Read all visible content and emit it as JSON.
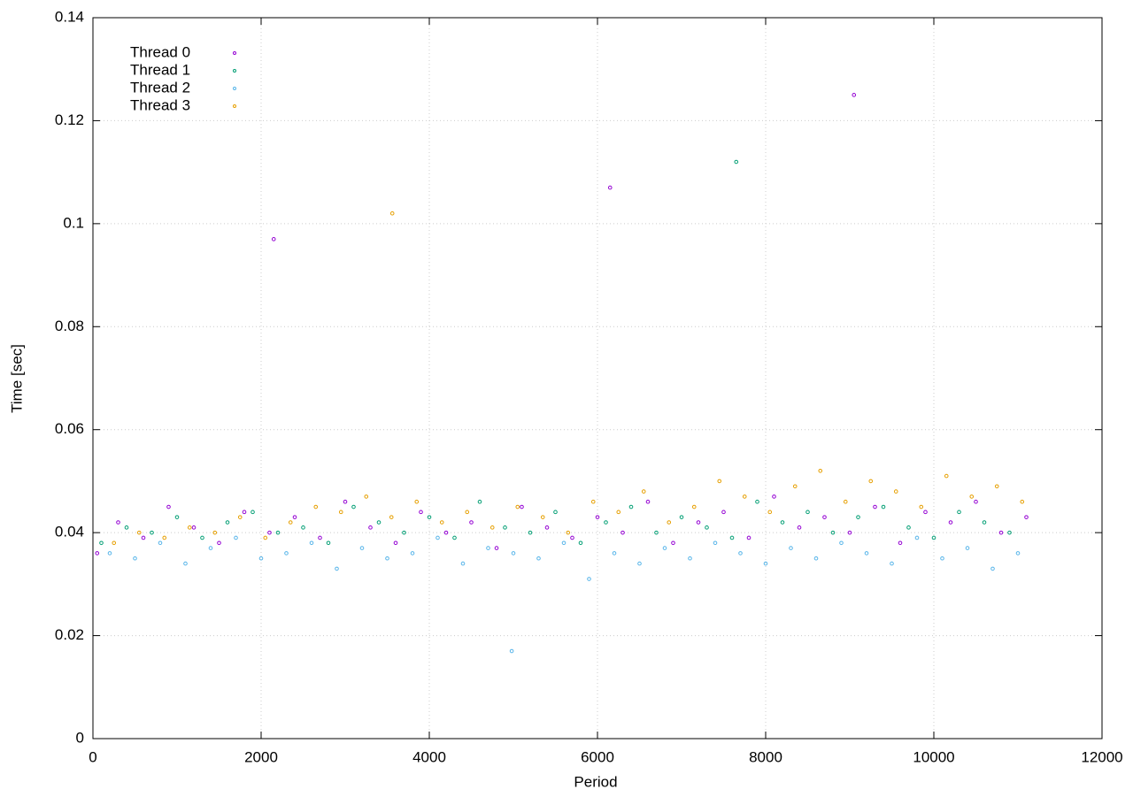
{
  "chart_data": {
    "type": "scatter",
    "xlabel": "Period",
    "ylabel": "Time [sec]",
    "xlim": [
      0,
      12000
    ],
    "ylim": [
      0,
      0.14
    ],
    "xticks": [
      0,
      2000,
      4000,
      6000,
      8000,
      10000,
      12000
    ],
    "yticks": [
      0,
      0.02,
      0.04,
      0.06,
      0.08,
      0.1,
      0.12,
      0.14
    ],
    "grid": true,
    "legend": "top-left",
    "series": [
      {
        "name": "Thread 0",
        "color": "#9400d3",
        "x": [
          50,
          300,
          600,
          900,
          1200,
          1500,
          1800,
          2100,
          2150,
          2400,
          2700,
          3000,
          3300,
          3600,
          3900,
          4200,
          4500,
          4800,
          5100,
          5400,
          5700,
          6000,
          6150,
          6300,
          6600,
          6900,
          7200,
          7500,
          7800,
          8100,
          8400,
          8700,
          9000,
          9050,
          9300,
          9600,
          9900,
          10200,
          10500,
          10800,
          11100
        ],
        "values": [
          0.036,
          0.042,
          0.039,
          0.045,
          0.041,
          0.038,
          0.044,
          0.04,
          0.097,
          0.043,
          0.039,
          0.046,
          0.041,
          0.038,
          0.044,
          0.04,
          0.042,
          0.037,
          0.045,
          0.041,
          0.039,
          0.043,
          0.107,
          0.04,
          0.046,
          0.038,
          0.042,
          0.044,
          0.039,
          0.047,
          0.041,
          0.043,
          0.04,
          0.125,
          0.045,
          0.038,
          0.044,
          0.042,
          0.046,
          0.04,
          0.043
        ]
      },
      {
        "name": "Thread 1",
        "color": "#009e73",
        "x": [
          100,
          400,
          700,
          1000,
          1300,
          1600,
          1900,
          2200,
          2500,
          2800,
          3100,
          3400,
          3700,
          4000,
          4300,
          4600,
          4900,
          5200,
          5500,
          5800,
          6100,
          6400,
          6700,
          7000,
          7300,
          7600,
          7900,
          8200,
          8500,
          8800,
          9100,
          9400,
          9700,
          10000,
          10300,
          10600,
          10900,
          7650
        ],
        "values": [
          0.038,
          0.041,
          0.04,
          0.043,
          0.039,
          0.042,
          0.044,
          0.04,
          0.041,
          0.038,
          0.045,
          0.042,
          0.04,
          0.043,
          0.039,
          0.046,
          0.041,
          0.04,
          0.044,
          0.038,
          0.042,
          0.045,
          0.04,
          0.043,
          0.041,
          0.039,
          0.046,
          0.042,
          0.044,
          0.04,
          0.043,
          0.045,
          0.041,
          0.039,
          0.044,
          0.042,
          0.04,
          0.112
        ]
      },
      {
        "name": "Thread 2",
        "color": "#56b4e9",
        "x": [
          200,
          500,
          800,
          1100,
          1400,
          1700,
          2000,
          2300,
          2600,
          2900,
          3200,
          3500,
          3800,
          4100,
          4400,
          4700,
          5000,
          5300,
          5600,
          5900,
          6200,
          6500,
          6800,
          7100,
          7400,
          7700,
          8000,
          8300,
          8600,
          8900,
          9200,
          9500,
          9800,
          10100,
          10400,
          10700,
          11000,
          4980
        ],
        "values": [
          0.036,
          0.035,
          0.038,
          0.034,
          0.037,
          0.039,
          0.035,
          0.036,
          0.038,
          0.033,
          0.037,
          0.035,
          0.036,
          0.039,
          0.034,
          0.037,
          0.036,
          0.035,
          0.038,
          0.031,
          0.036,
          0.034,
          0.037,
          0.035,
          0.038,
          0.036,
          0.034,
          0.037,
          0.035,
          0.038,
          0.036,
          0.034,
          0.039,
          0.035,
          0.037,
          0.033,
          0.036,
          0.017
        ]
      },
      {
        "name": "Thread 3",
        "color": "#e69f00",
        "x": [
          250,
          550,
          850,
          1150,
          1450,
          1750,
          2050,
          2350,
          2650,
          2950,
          3250,
          3550,
          3850,
          4150,
          4450,
          4750,
          5050,
          5350,
          5650,
          5950,
          6250,
          6550,
          6850,
          7150,
          7450,
          7750,
          8050,
          8350,
          8650,
          8950,
          9250,
          9550,
          9850,
          10150,
          10450,
          10750,
          11050,
          3560
        ],
        "values": [
          0.038,
          0.04,
          0.039,
          0.041,
          0.04,
          0.043,
          0.039,
          0.042,
          0.045,
          0.044,
          0.047,
          0.043,
          0.046,
          0.042,
          0.044,
          0.041,
          0.045,
          0.043,
          0.04,
          0.046,
          0.044,
          0.048,
          0.042,
          0.045,
          0.05,
          0.047,
          0.044,
          0.049,
          0.052,
          0.046,
          0.05,
          0.048,
          0.045,
          0.051,
          0.047,
          0.049,
          0.046,
          0.102
        ]
      }
    ]
  }
}
